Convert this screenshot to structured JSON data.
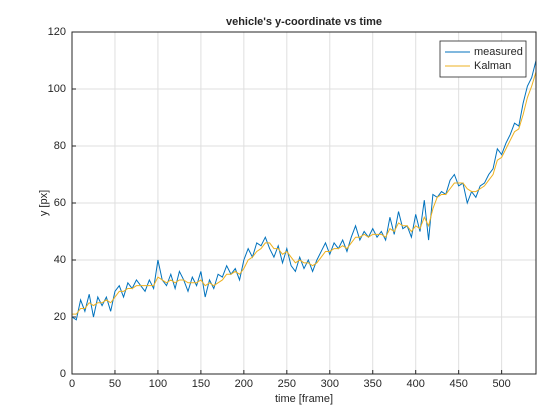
{
  "chart_data": {
    "type": "line",
    "title": "vehicle's y-coordinate vs time",
    "xlabel": "time [frame]",
    "ylabel": "y [px]",
    "x": [
      0,
      5,
      10,
      15,
      20,
      25,
      30,
      35,
      40,
      45,
      50,
      55,
      60,
      65,
      70,
      75,
      80,
      85,
      90,
      95,
      100,
      105,
      110,
      115,
      120,
      125,
      130,
      135,
      140,
      145,
      150,
      155,
      160,
      165,
      170,
      175,
      180,
      185,
      190,
      195,
      200,
      205,
      210,
      215,
      220,
      225,
      230,
      235,
      240,
      245,
      250,
      255,
      260,
      265,
      270,
      275,
      280,
      285,
      290,
      295,
      300,
      305,
      310,
      315,
      320,
      325,
      330,
      335,
      340,
      345,
      350,
      355,
      360,
      365,
      370,
      375,
      380,
      385,
      390,
      395,
      400,
      405,
      410,
      415,
      420,
      425,
      430,
      435,
      440,
      445,
      450,
      455,
      460,
      465,
      470,
      475,
      480,
      485,
      490,
      495,
      500,
      505,
      510,
      515,
      520,
      525,
      530,
      535,
      540
    ],
    "series": [
      {
        "name": "measured",
        "color": "#0072bd",
        "values": [
          20,
          19,
          26,
          22,
          28,
          20,
          27,
          24,
          27,
          22,
          29,
          31,
          27,
          32,
          30,
          33,
          31,
          29,
          33,
          30,
          40,
          33,
          31,
          35,
          30,
          36,
          33,
          29,
          34,
          31,
          36,
          27,
          33,
          30,
          35,
          34,
          38,
          35,
          37,
          33,
          40,
          44,
          41,
          46,
          45,
          48,
          44,
          41,
          45,
          39,
          44,
          38,
          36,
          41,
          37,
          40,
          36,
          40,
          43,
          46,
          42,
          46,
          44,
          47,
          43,
          48,
          52,
          47,
          50,
          48,
          51,
          48,
          50,
          47,
          55,
          49,
          57,
          51,
          52,
          48,
          56,
          50,
          61,
          47,
          63,
          62,
          64,
          63,
          68,
          70,
          66,
          67,
          60,
          64,
          62,
          66,
          67,
          70,
          72,
          79,
          77,
          81,
          84,
          88,
          87,
          95,
          101,
          104,
          110
        ]
      },
      {
        "name": "Kalman",
        "color": "#edb120",
        "values": [
          21,
          21,
          23,
          23,
          25,
          24,
          25,
          25,
          26,
          25,
          27,
          29,
          29,
          30,
          30,
          31,
          31,
          31,
          31,
          31,
          34,
          33,
          32,
          33,
          32,
          33,
          33,
          32,
          32,
          32,
          33,
          31,
          32,
          31,
          32,
          33,
          35,
          35,
          36,
          35,
          37,
          40,
          41,
          43,
          44,
          46,
          46,
          44,
          44,
          42,
          43,
          41,
          39,
          40,
          39,
          39,
          38,
          39,
          41,
          43,
          43,
          44,
          44,
          45,
          44,
          46,
          48,
          48,
          49,
          48,
          49,
          49,
          49,
          48,
          51,
          50,
          53,
          52,
          52,
          50,
          52,
          51,
          55,
          52,
          58,
          62,
          63,
          63,
          65,
          67,
          67,
          67,
          65,
          64,
          64,
          65,
          66,
          68,
          70,
          75,
          76,
          79,
          82,
          85,
          86,
          91,
          97,
          101,
          106
        ]
      }
    ],
    "xlim": [
      0,
      540
    ],
    "ylim": [
      0,
      120
    ],
    "xticks": [
      0,
      50,
      100,
      150,
      200,
      250,
      300,
      350,
      400,
      450,
      500
    ],
    "yticks": [
      0,
      20,
      40,
      60,
      80,
      100,
      120
    ],
    "grid": true,
    "legend": "northeast"
  }
}
